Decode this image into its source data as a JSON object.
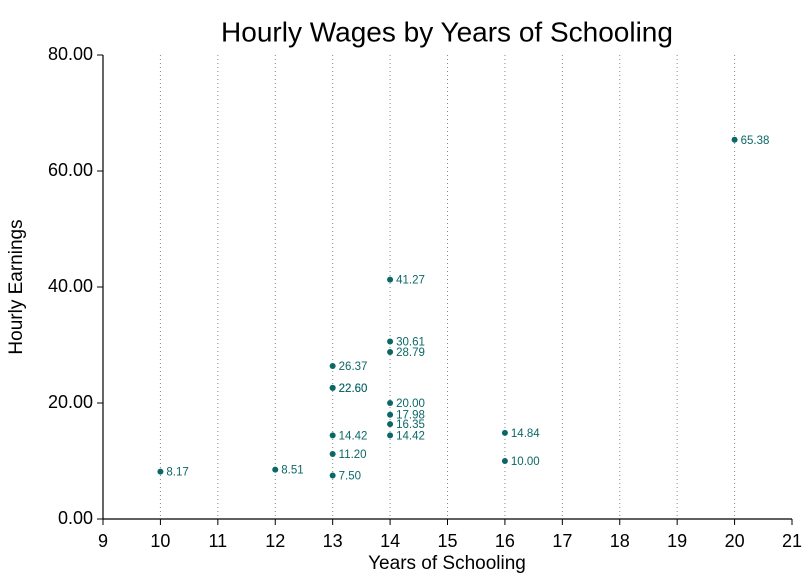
{
  "chart_data": {
    "type": "scatter",
    "title": "Hourly Wages by Years of Schooling",
    "x_label": "Years of Schooling",
    "y_label": "Hourly Earnings",
    "x": [
      10,
      12,
      13,
      13,
      13,
      13,
      13,
      13,
      14,
      14,
      14,
      14,
      14,
      14,
      14,
      16,
      16,
      20
    ],
    "values": [
      8.17,
      8.51,
      7.5,
      11.2,
      14.42,
      22.6,
      22.6,
      26.37,
      14.42,
      16.35,
      17.98,
      20,
      28.79,
      30.61,
      41.27,
      10,
      14.84,
      65.38
    ],
    "value_labels": [
      "8.17",
      "8.51",
      "7.50",
      "11.20",
      "14.42",
      "22.60",
      "22.60",
      "26.37",
      "14.42",
      "16.35",
      "17.98",
      "20.00",
      "28.79",
      "30.61",
      "41.27",
      "10.00",
      "14.84",
      "65.38"
    ],
    "color": "#0b6767",
    "xlim": [
      9,
      21
    ],
    "xticks": [
      9,
      10,
      11,
      12,
      13,
      14,
      15,
      16,
      17,
      18,
      19,
      20,
      21
    ],
    "ylim": [
      0,
      80
    ],
    "yticks": [
      {
        "value": 0,
        "label": "0.00"
      },
      {
        "value": 20,
        "label": "20.00"
      },
      {
        "value": 40,
        "label": "40.00"
      },
      {
        "value": 60,
        "label": "60.00"
      },
      {
        "value": 80,
        "label": "80.00"
      }
    ],
    "grid": "x"
  }
}
